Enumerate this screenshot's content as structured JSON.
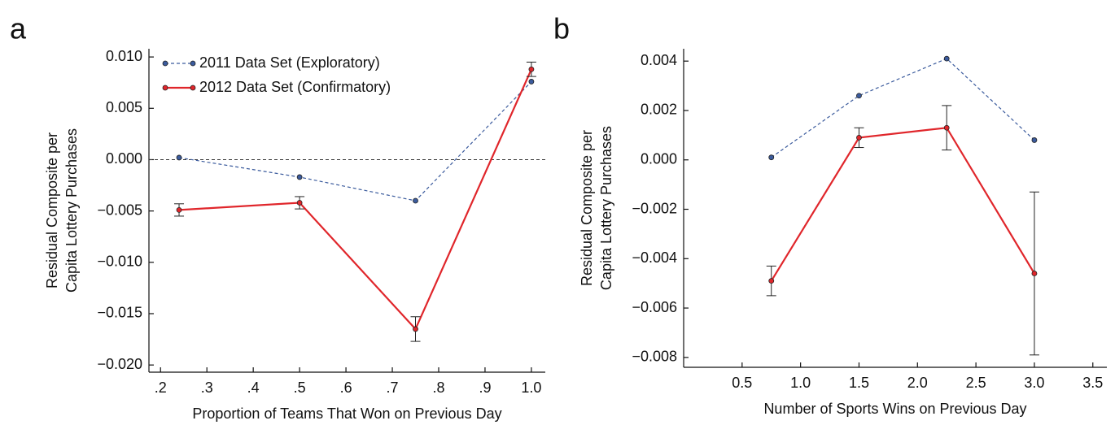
{
  "chart_data": [
    {
      "type": "line",
      "panel": "a",
      "xlabel": "Proportion of Teams That Won on Previous Day",
      "ylabel": [
        "Residual Composite per",
        "Capita Lottery Purchases"
      ],
      "xlim": [
        0.175,
        1.03
      ],
      "ylim": [
        -0.0207,
        0.0108
      ],
      "xticks": [
        {
          "value": 0.2,
          "label": ".2"
        },
        {
          "value": 0.3,
          "label": ".3"
        },
        {
          "value": 0.4,
          "label": ".4"
        },
        {
          "value": 0.5,
          "label": ".5"
        },
        {
          "value": 0.6,
          "label": ".6"
        },
        {
          "value": 0.7,
          "label": ".7"
        },
        {
          "value": 0.8,
          "label": ".8"
        },
        {
          "value": 0.9,
          "label": ".9"
        },
        {
          "value": 1,
          "label": "1.0"
        }
      ],
      "yticks": [
        {
          "value": 0.01,
          "label": "0.010"
        },
        {
          "value": 0.005,
          "label": "0.005"
        },
        {
          "value": 0,
          "label": "0.000"
        },
        {
          "value": -0.005,
          "label": "−0.005"
        },
        {
          "value": -0.01,
          "label": "−0.010"
        },
        {
          "value": -0.015,
          "label": "−0.015"
        },
        {
          "value": -0.02,
          "label": "−0.020"
        }
      ],
      "hline": 0,
      "legend": "upper left",
      "series": [
        {
          "name": "2011 Data Set (Exploratory)",
          "color": "#3b5b9d",
          "dashed": true,
          "x": [
            0.24,
            0.5,
            0.75,
            1.0
          ],
          "values": [
            0.0002,
            -0.0017,
            -0.004,
            0.0076
          ]
        },
        {
          "name": "2012 Data Set (Confirmatory)",
          "color": "#e0262b",
          "dashed": false,
          "x": [
            0.24,
            0.5,
            0.75,
            1.0
          ],
          "values": [
            -0.0049,
            -0.0042,
            -0.0165,
            0.0088
          ],
          "errors": [
            0.0006,
            0.0006,
            0.0012,
            0.0007
          ]
        }
      ]
    },
    {
      "type": "line",
      "panel": "b",
      "xlabel": "Number of Sports Wins on Previous Day",
      "ylabel": [
        "Residual Composite per",
        "Capita Lottery Purchases"
      ],
      "xlim": [
        0.0,
        3.62
      ],
      "ylim": [
        -0.0084,
        0.0045
      ],
      "xticks": [
        0.5,
        {
          "value": 1,
          "label": "1.0"
        },
        1.5,
        {
          "value": 2,
          "label": "2.0"
        },
        2.5,
        {
          "value": 3,
          "label": "3.0"
        },
        3.5
      ],
      "yticks": [
        {
          "value": 0.004,
          "label": "0.004"
        },
        {
          "value": 0.002,
          "label": "0.002"
        },
        {
          "value": 0,
          "label": "0.000"
        },
        {
          "value": -0.002,
          "label": "−0.002"
        },
        {
          "value": -0.004,
          "label": "−0.004"
        },
        {
          "value": -0.006,
          "label": "−0.006"
        },
        {
          "value": -0.008,
          "label": "−0.008"
        }
      ],
      "series": [
        {
          "color": "#3b5b9d",
          "dashed": true,
          "x": [
            0.75,
            1.5,
            2.25,
            3.0
          ],
          "values": [
            0.0001,
            0.0026,
            0.0041,
            0.0008
          ]
        },
        {
          "color": "#e0262b",
          "dashed": false,
          "x": [
            0.75,
            1.5,
            2.25,
            3.0
          ],
          "values": [
            -0.0049,
            0.0009,
            0.0013,
            -0.0046
          ],
          "errors": [
            0.0006,
            0.0004,
            0.0009,
            0.0033
          ]
        }
      ]
    }
  ]
}
